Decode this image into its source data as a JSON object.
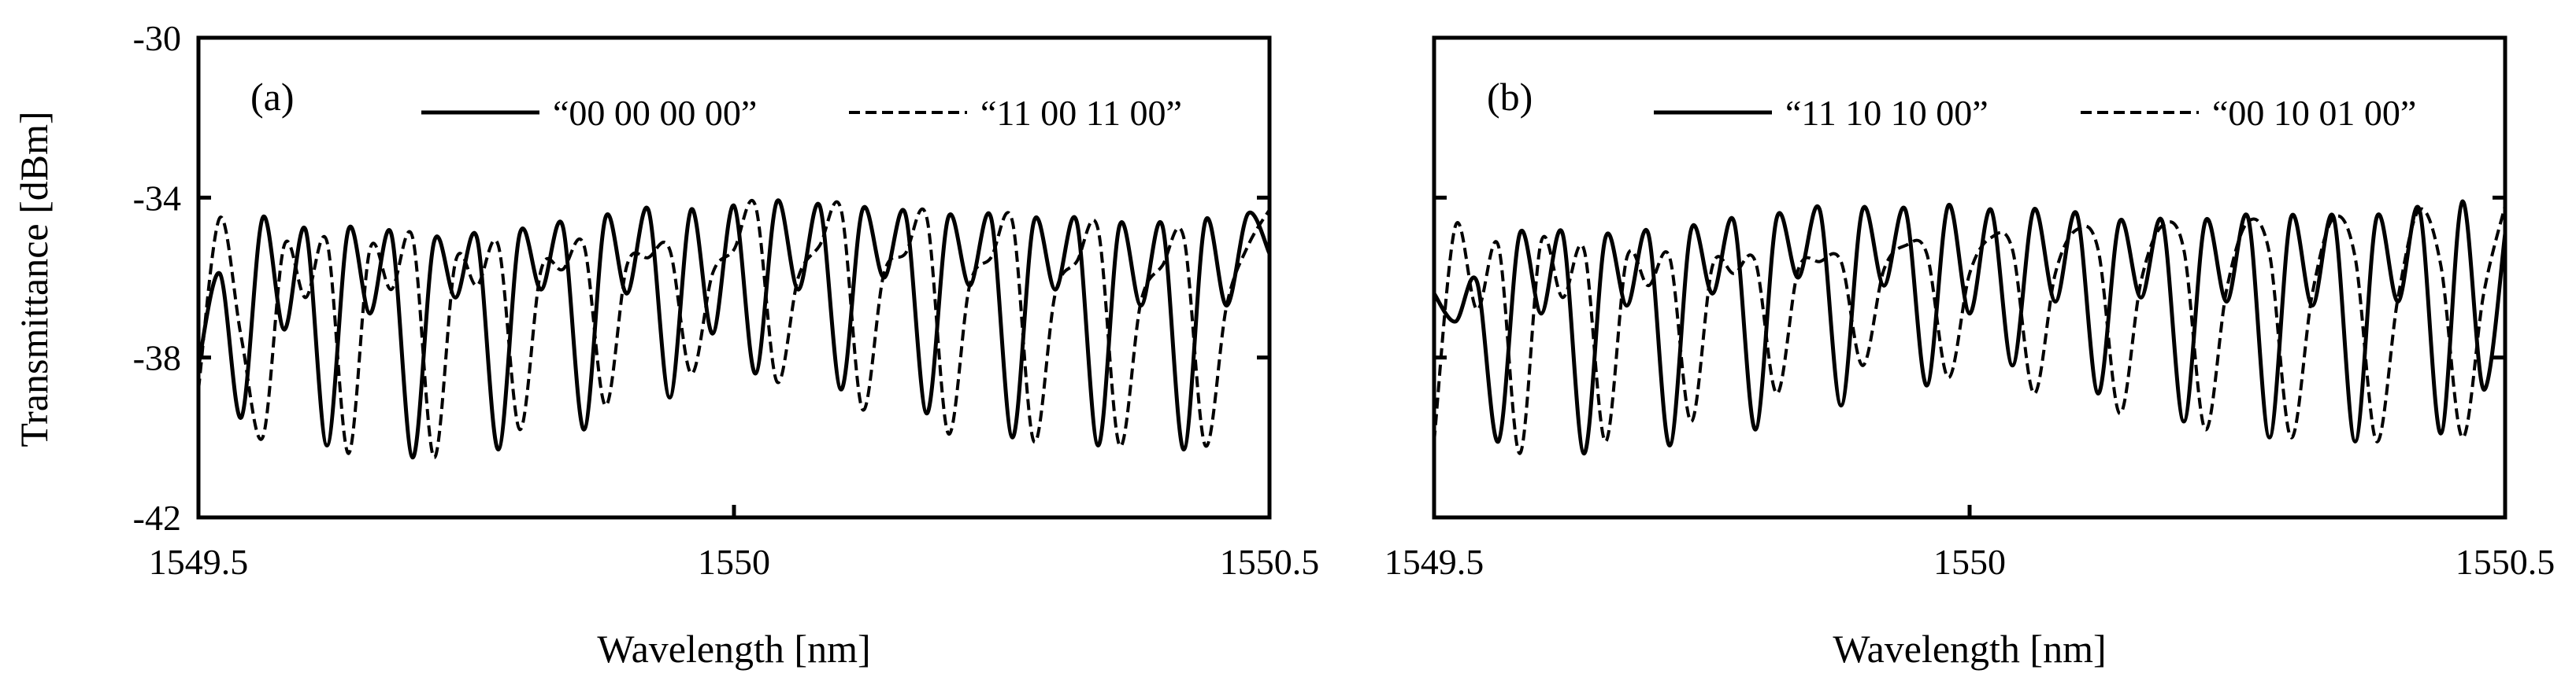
{
  "figure": {
    "ylabel": "Transmittance [dBm]",
    "xlabel": "Wavelength [nm]"
  },
  "chart_data": [
    {
      "type": "line",
      "panel_label": "(a)",
      "xlabel": "Wavelength [nm]",
      "ylabel": "Transmittance [dBm]",
      "xlim": [
        1549.5,
        1550.5
      ],
      "ylim": [
        -42,
        -30
      ],
      "xticks": [
        "1549.5",
        "1550",
        "1550.5"
      ],
      "yticks": [
        "-30",
        "-34",
        "-38",
        "-42"
      ],
      "legend_position": "top",
      "series": [
        {
          "name": "“00 00 00 00”",
          "style": "solid",
          "x": [
            1549.5,
            1549.52,
            1549.54,
            1549.56,
            1549.58,
            1549.6,
            1549.62,
            1549.64,
            1549.66,
            1549.68,
            1549.7,
            1549.72,
            1549.74,
            1549.76,
            1549.78,
            1549.8,
            1549.82,
            1549.84,
            1549.86,
            1549.88,
            1549.9,
            1549.92,
            1549.94,
            1549.96,
            1549.98,
            1550.0,
            1550.02,
            1550.04,
            1550.06,
            1550.08,
            1550.1,
            1550.12,
            1550.14,
            1550.16,
            1550.18,
            1550.2,
            1550.22,
            1550.24,
            1550.26,
            1550.28,
            1550.3,
            1550.32,
            1550.34,
            1550.36,
            1550.38,
            1550.4,
            1550.42,
            1550.44,
            1550.46,
            1550.48,
            1550.5
          ],
          "y": [
            -38.2,
            -35.9,
            -39.5,
            -34.5,
            -37.3,
            -34.8,
            -40.2,
            -34.8,
            -36.9,
            -34.9,
            -40.5,
            -35.1,
            -36.5,
            -35.0,
            -40.3,
            -34.9,
            -36.3,
            -34.7,
            -39.8,
            -34.5,
            -36.4,
            -34.3,
            -39.0,
            -34.3,
            -37.4,
            -34.2,
            -38.4,
            -34.1,
            -36.3,
            -34.2,
            -38.8,
            -34.3,
            -36.0,
            -34.4,
            -39.4,
            -34.5,
            -36.2,
            -34.5,
            -40.0,
            -34.6,
            -36.3,
            -34.6,
            -40.2,
            -34.7,
            -36.7,
            -34.7,
            -40.3,
            -34.6,
            -36.7,
            -34.4,
            -35.4
          ]
        },
        {
          "name": "“11 00 11 00”",
          "style": "dashed",
          "x": [
            1549.5,
            1549.52,
            1549.54,
            1549.56,
            1549.58,
            1549.6,
            1549.62,
            1549.64,
            1549.66,
            1549.68,
            1549.7,
            1549.72,
            1549.74,
            1549.76,
            1549.78,
            1549.8,
            1549.82,
            1549.84,
            1549.86,
            1549.88,
            1549.9,
            1549.92,
            1549.94,
            1549.96,
            1549.98,
            1550.0,
            1550.02,
            1550.04,
            1550.06,
            1550.08,
            1550.1,
            1550.12,
            1550.14,
            1550.16,
            1550.18,
            1550.2,
            1550.22,
            1550.24,
            1550.26,
            1550.28,
            1550.3,
            1550.32,
            1550.34,
            1550.36,
            1550.38,
            1550.4,
            1550.42,
            1550.44,
            1550.46,
            1550.48,
            1550.5
          ],
          "y": [
            -38.8,
            -34.5,
            -37.5,
            -40.0,
            -35.2,
            -36.5,
            -35.1,
            -40.4,
            -35.3,
            -36.3,
            -35.0,
            -40.5,
            -35.6,
            -36.2,
            -35.2,
            -39.8,
            -35.8,
            -35.8,
            -35.2,
            -39.2,
            -35.7,
            -35.5,
            -35.3,
            -38.4,
            -35.9,
            -35.3,
            -34.2,
            -38.6,
            -36.0,
            -35.2,
            -34.3,
            -39.3,
            -35.9,
            -35.4,
            -34.5,
            -39.9,
            -36.2,
            -35.5,
            -34.6,
            -40.1,
            -36.4,
            -35.6,
            -34.8,
            -40.2,
            -36.6,
            -35.7,
            -35.0,
            -40.2,
            -36.7,
            -35.2,
            -34.3
          ]
        }
      ]
    },
    {
      "type": "line",
      "panel_label": "(b)",
      "xlabel": "Wavelength [nm]",
      "xlim": [
        1549.5,
        1550.5
      ],
      "ylim": [
        -42,
        -30
      ],
      "xticks": [
        "1549.5",
        "1550",
        "1550.5"
      ],
      "legend_position": "top",
      "series": [
        {
          "name": "“11 10 10 00”",
          "style": "solid",
          "x": [
            1549.5,
            1549.52,
            1549.54,
            1549.56,
            1549.58,
            1549.6,
            1549.62,
            1549.64,
            1549.66,
            1549.68,
            1549.7,
            1549.72,
            1549.74,
            1549.76,
            1549.78,
            1549.8,
            1549.82,
            1549.84,
            1549.86,
            1549.88,
            1549.9,
            1549.92,
            1549.94,
            1549.96,
            1549.98,
            1550.0,
            1550.02,
            1550.04,
            1550.06,
            1550.08,
            1550.1,
            1550.12,
            1550.14,
            1550.16,
            1550.18,
            1550.2,
            1550.22,
            1550.24,
            1550.26,
            1550.28,
            1550.3,
            1550.32,
            1550.34,
            1550.36,
            1550.38,
            1550.4,
            1550.42,
            1550.44,
            1550.46,
            1550.48,
            1550.5
          ],
          "y": [
            -36.4,
            -37.1,
            -36.1,
            -40.1,
            -34.9,
            -36.9,
            -34.9,
            -40.4,
            -35.0,
            -36.7,
            -34.9,
            -40.2,
            -34.8,
            -36.4,
            -34.6,
            -39.8,
            -34.5,
            -36.0,
            -34.3,
            -39.2,
            -34.3,
            -36.2,
            -34.3,
            -38.7,
            -34.2,
            -36.9,
            -34.3,
            -38.2,
            -34.3,
            -36.6,
            -34.4,
            -38.9,
            -34.6,
            -36.5,
            -34.6,
            -39.6,
            -34.6,
            -36.6,
            -34.5,
            -40.0,
            -34.5,
            -36.7,
            -34.5,
            -40.1,
            -34.5,
            -36.6,
            -34.3,
            -39.9,
            -34.1,
            -38.8,
            -34.9
          ]
        },
        {
          "name": "“00 10 01 00”",
          "style": "dashed",
          "x": [
            1549.5,
            1549.52,
            1549.54,
            1549.56,
            1549.58,
            1549.6,
            1549.62,
            1549.64,
            1549.66,
            1549.68,
            1549.7,
            1549.72,
            1549.74,
            1549.76,
            1549.78,
            1549.8,
            1549.82,
            1549.84,
            1549.86,
            1549.88,
            1549.9,
            1549.92,
            1549.94,
            1549.96,
            1549.98,
            1550.0,
            1550.02,
            1550.04,
            1550.06,
            1550.08,
            1550.1,
            1550.12,
            1550.14,
            1550.16,
            1550.18,
            1550.2,
            1550.22,
            1550.24,
            1550.26,
            1550.28,
            1550.3,
            1550.32,
            1550.34,
            1550.36,
            1550.38,
            1550.4,
            1550.42,
            1550.44,
            1550.46,
            1550.48,
            1550.5
          ],
          "y": [
            -40.1,
            -34.7,
            -36.8,
            -35.2,
            -40.4,
            -35.1,
            -36.5,
            -35.3,
            -40.1,
            -35.5,
            -36.2,
            -35.5,
            -39.6,
            -35.7,
            -35.9,
            -35.6,
            -38.9,
            -35.8,
            -35.6,
            -35.6,
            -38.2,
            -35.8,
            -35.2,
            -35.4,
            -38.5,
            -35.9,
            -35.0,
            -35.3,
            -38.9,
            -35.9,
            -34.8,
            -35.3,
            -39.4,
            -36.1,
            -34.7,
            -35.3,
            -39.8,
            -36.3,
            -34.6,
            -35.4,
            -40.0,
            -36.4,
            -34.5,
            -35.5,
            -40.1,
            -36.5,
            -34.3,
            -35.7,
            -40.0,
            -36.4,
            -34.2
          ]
        }
      ]
    }
  ]
}
